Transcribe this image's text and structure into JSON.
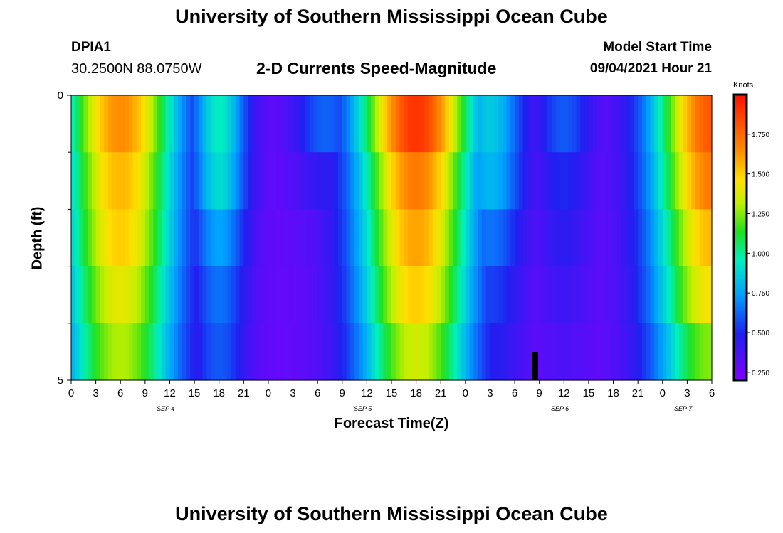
{
  "header": {
    "title": "University of Southern Mississippi Ocean Cube",
    "station_id": "DPIA1",
    "coordinates": "30.2500N  88.0750W",
    "subtitle": "2-D Currents Speed-Magnitude",
    "model_start_label": "Model Start Time",
    "model_start_value": "09/04/2021 Hour 21"
  },
  "footer": {
    "title": "University of Southern Mississippi Ocean Cube"
  },
  "chart_data": {
    "type": "heatmap",
    "title": "2-D Currents Speed-Magnitude",
    "xlabel": "Forecast Time(Z)",
    "ylabel": "Depth (ft)",
    "colorbar_unit": "Knots",
    "colorbar_ticks": [
      "0.250",
      "0.500",
      "0.750",
      "1.000",
      "1.250",
      "1.500",
      "1.750"
    ],
    "colorbar_range": [
      0.2,
      2.0
    ],
    "x_range_hours": [
      0,
      78
    ],
    "x_tick_labels": [
      "0",
      "3",
      "6",
      "9",
      "12",
      "15",
      "18",
      "21",
      "0",
      "3",
      "6",
      "9",
      "12",
      "15",
      "18",
      "21",
      "0",
      "3",
      "6",
      "9",
      "12",
      "15",
      "18",
      "21",
      "0",
      "3",
      "6"
    ],
    "date_labels": [
      {
        "label": "SEP 4",
        "hour": 11.5
      },
      {
        "label": "SEP 5",
        "hour": 35.5
      },
      {
        "label": "SEP 6",
        "hour": 59.5
      },
      {
        "label": "SEP 7",
        "hour": 74.5
      }
    ],
    "y_range": [
      0,
      5
    ],
    "y_tick_labels": [
      "0",
      "5"
    ],
    "y_minor_ticks": [
      1,
      2,
      3,
      4
    ],
    "depth_levels": 5,
    "current_time_marker_hour": 56.5,
    "peak_profiles": [
      {
        "center": 6,
        "halfwidth": 5,
        "values": [
          1.65,
          1.55,
          1.5,
          1.4,
          1.3
        ]
      },
      {
        "center": 18,
        "halfwidth": 2.5,
        "values": [
          0.95,
          0.9,
          0.75,
          0.65,
          0.6
        ]
      },
      {
        "center": 31,
        "halfwidth": 2.8,
        "values": [
          0.62,
          0.45,
          0.35,
          0.32,
          0.3
        ]
      },
      {
        "center": 42,
        "halfwidth": 5,
        "values": [
          1.9,
          1.7,
          1.6,
          1.5,
          1.35
        ]
      },
      {
        "center": 51,
        "halfwidth": 3,
        "values": [
          0.85,
          0.8,
          0.65,
          0.55,
          0.48
        ]
      },
      {
        "center": 60,
        "halfwidth": 2.5,
        "values": [
          0.6,
          0.5,
          0.45,
          0.4,
          0.35
        ]
      },
      {
        "center": 78,
        "halfwidth": 5,
        "values": [
          1.8,
          1.7,
          1.55,
          1.45,
          1.25
        ]
      }
    ]
  }
}
